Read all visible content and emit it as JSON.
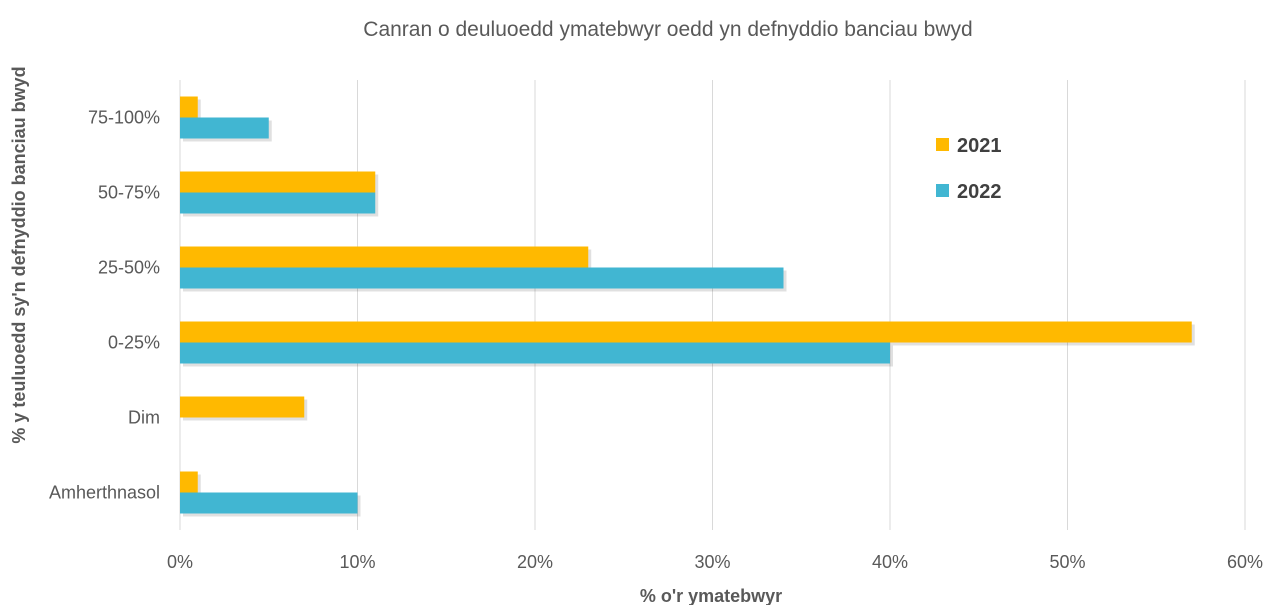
{
  "chart_data": {
    "type": "bar",
    "orientation": "horizontal",
    "title": "Canran o deuluoedd ymatebwyr oedd yn defnyddio banciau bwyd",
    "xlabel": "% o'r ymatebwyr",
    "ylabel": "% y teuluoedd sy'n defnyddio banciau bwyd",
    "categories": [
      "75-100%",
      "50-75%",
      "25-50%",
      "0-25%",
      "Dim",
      "Amherthnasol"
    ],
    "xlim": [
      0,
      60
    ],
    "xticks": [
      "0%",
      "10%",
      "20%",
      "30%",
      "40%",
      "50%",
      "60%"
    ],
    "grid": true,
    "legend_position": "top-right",
    "series": [
      {
        "name": "2021",
        "color": "#FFB900",
        "values": [
          1,
          11,
          23,
          57,
          7,
          1
        ]
      },
      {
        "name": "2022",
        "color": "#41B6D2",
        "values": [
          5,
          11,
          34,
          40,
          0,
          10
        ]
      }
    ]
  }
}
